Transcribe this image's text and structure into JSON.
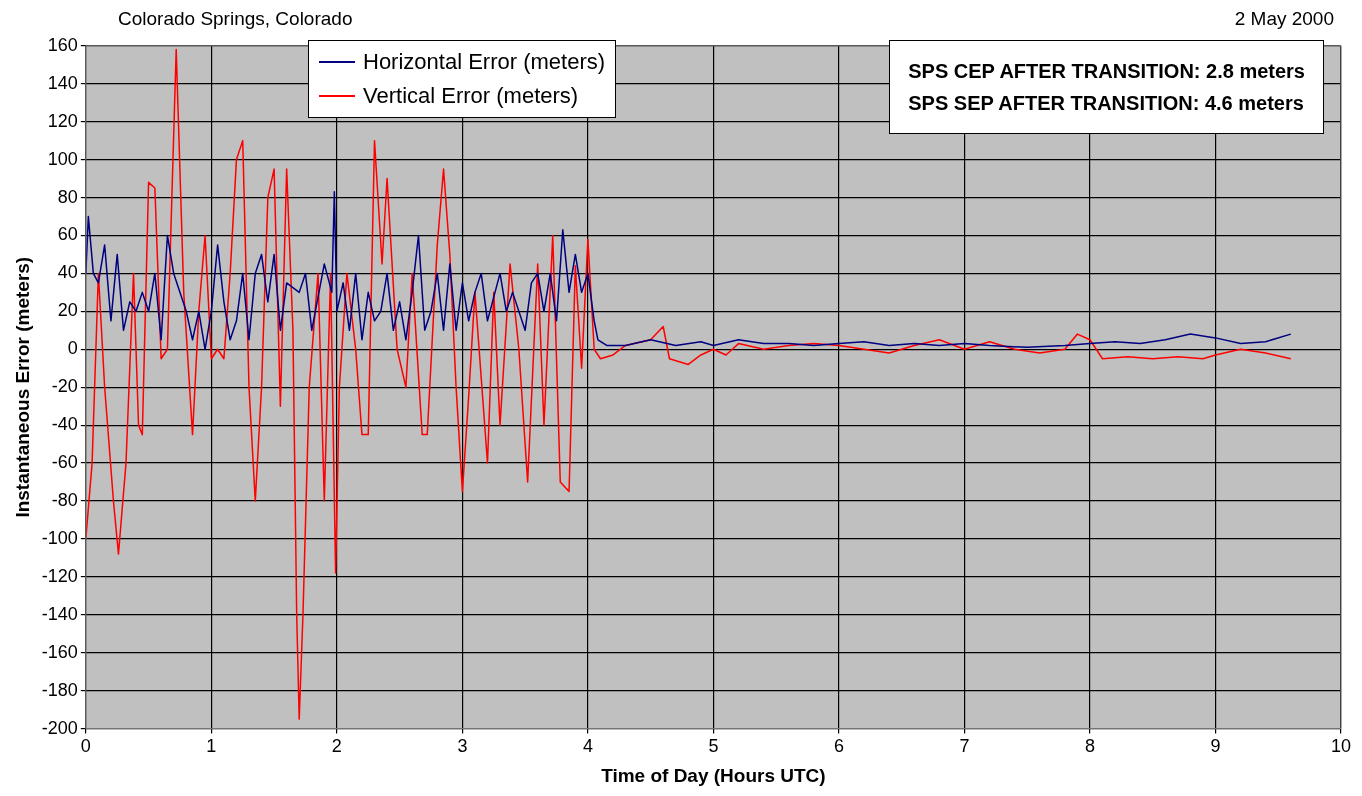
{
  "chart_data": {
    "type": "line",
    "title": "Colorado Springs, Colorado",
    "subtitle": "2 May 2000",
    "xlabel": "Time of Day (Hours UTC)",
    "ylabel": "Instantaneous Error (meters)",
    "annotations": [
      "SPS CEP AFTER TRANSITION:  2.8 meters",
      "SPS SEP AFTER TRANSITION:  4.6 meters"
    ],
    "series": [
      {
        "name": "Horizontal Error (meters)",
        "color": "#000080",
        "x": [
          0,
          0.02,
          0.06,
          0.1,
          0.15,
          0.2,
          0.25,
          0.3,
          0.35,
          0.4,
          0.45,
          0.5,
          0.55,
          0.6,
          0.65,
          0.7,
          0.8,
          0.85,
          0.9,
          0.95,
          1.0,
          1.05,
          1.1,
          1.15,
          1.2,
          1.25,
          1.3,
          1.35,
          1.4,
          1.45,
          1.5,
          1.55,
          1.6,
          1.7,
          1.75,
          1.8,
          1.9,
          1.96,
          1.98,
          2.0,
          2.05,
          2.1,
          2.15,
          2.2,
          2.25,
          2.3,
          2.35,
          2.4,
          2.45,
          2.5,
          2.55,
          2.6,
          2.65,
          2.7,
          2.75,
          2.8,
          2.85,
          2.9,
          2.95,
          3.0,
          3.05,
          3.1,
          3.15,
          3.2,
          3.3,
          3.35,
          3.4,
          3.5,
          3.55,
          3.6,
          3.65,
          3.7,
          3.75,
          3.8,
          3.85,
          3.9,
          3.95,
          4.0,
          4.05,
          4.08,
          4.15,
          4.3,
          4.5,
          4.7,
          4.9,
          5.0,
          5.2,
          5.4,
          5.6,
          5.8,
          6.0,
          6.2,
          6.4,
          6.6,
          6.8,
          7.0,
          7.2,
          7.5,
          7.8,
          8.0,
          8.2,
          8.4,
          8.6,
          8.8,
          9.0,
          9.2,
          9.4,
          9.6
        ],
        "values": [
          40,
          70,
          40,
          35,
          55,
          15,
          50,
          10,
          25,
          20,
          30,
          20,
          40,
          5,
          60,
          40,
          20,
          5,
          20,
          0,
          20,
          55,
          25,
          5,
          15,
          40,
          5,
          40,
          50,
          25,
          50,
          10,
          35,
          30,
          40,
          10,
          45,
          30,
          83,
          20,
          35,
          10,
          40,
          5,
          30,
          15,
          20,
          40,
          10,
          25,
          5,
          30,
          60,
          10,
          20,
          40,
          10,
          45,
          10,
          35,
          15,
          30,
          40,
          15,
          40,
          20,
          30,
          10,
          35,
          40,
          20,
          40,
          15,
          63,
          30,
          50,
          30,
          40,
          15,
          5,
          2,
          2,
          5,
          2,
          4,
          2,
          5,
          3,
          3,
          2,
          3,
          4,
          2,
          3,
          2,
          3,
          2,
          1,
          2,
          3,
          4,
          3,
          5,
          8,
          6,
          3,
          4,
          8
        ]
      },
      {
        "name": "Vertical Error (meters)",
        "color": "#ff0000",
        "x": [
          0,
          0.05,
          0.1,
          0.15,
          0.22,
          0.26,
          0.32,
          0.38,
          0.42,
          0.45,
          0.5,
          0.55,
          0.6,
          0.65,
          0.72,
          0.78,
          0.85,
          0.9,
          0.95,
          1.0,
          1.05,
          1.1,
          1.15,
          1.2,
          1.25,
          1.3,
          1.35,
          1.4,
          1.45,
          1.5,
          1.55,
          1.6,
          1.65,
          1.68,
          1.7,
          1.73,
          1.78,
          1.85,
          1.9,
          1.95,
          1.99,
          2.02,
          2.08,
          2.15,
          2.2,
          2.25,
          2.3,
          2.36,
          2.4,
          2.48,
          2.55,
          2.6,
          2.68,
          2.72,
          2.8,
          2.85,
          2.9,
          2.95,
          3.0,
          3.05,
          3.1,
          3.2,
          3.25,
          3.3,
          3.38,
          3.45,
          3.52,
          3.6,
          3.65,
          3.72,
          3.78,
          3.85,
          3.9,
          3.95,
          4.0,
          4.05,
          4.1,
          4.2,
          4.3,
          4.5,
          4.6,
          4.65,
          4.8,
          4.9,
          5.0,
          5.1,
          5.2,
          5.4,
          5.6,
          5.8,
          6.0,
          6.2,
          6.4,
          6.6,
          6.8,
          7.0,
          7.2,
          7.4,
          7.6,
          7.8,
          7.9,
          8.0,
          8.1,
          8.3,
          8.5,
          8.7,
          8.9,
          9.0,
          9.2,
          9.4,
          9.6
        ],
        "values": [
          -100,
          -60,
          40,
          -20,
          -80,
          -108,
          -60,
          40,
          -40,
          -45,
          88,
          85,
          -5,
          0,
          158,
          30,
          -45,
          20,
          60,
          -5,
          0,
          -5,
          40,
          100,
          110,
          -20,
          -80,
          -20,
          80,
          95,
          -30,
          95,
          10,
          -140,
          -195,
          -140,
          -20,
          40,
          -80,
          40,
          -118,
          -20,
          40,
          0,
          -45,
          -45,
          110,
          45,
          90,
          0,
          -20,
          40,
          -45,
          -45,
          55,
          95,
          50,
          -20,
          -75,
          -25,
          30,
          -60,
          30,
          -40,
          45,
          0,
          -70,
          45,
          -40,
          60,
          -70,
          -75,
          44,
          -10,
          58,
          0,
          -5,
          -3,
          2,
          5,
          12,
          -5,
          -8,
          -3,
          0,
          -3,
          3,
          0,
          2,
          3,
          2,
          0,
          -2,
          2,
          5,
          0,
          4,
          0,
          -2,
          0,
          8,
          5,
          -5,
          -4,
          -5,
          -4,
          -5,
          -3,
          0,
          -2,
          -5
        ]
      }
    ],
    "xlim": [
      0,
      10
    ],
    "xticks": [
      0,
      1,
      2,
      3,
      4,
      5,
      6,
      7,
      8,
      9,
      10
    ],
    "ylim": [
      -200,
      160
    ],
    "yticks": [
      -200,
      -180,
      -160,
      -140,
      -120,
      -100,
      -80,
      -60,
      -40,
      -20,
      0,
      20,
      40,
      60,
      80,
      100,
      120,
      140,
      160
    ],
    "grid": true,
    "legend": "top left",
    "marker": "none",
    "line_style": "solid"
  }
}
